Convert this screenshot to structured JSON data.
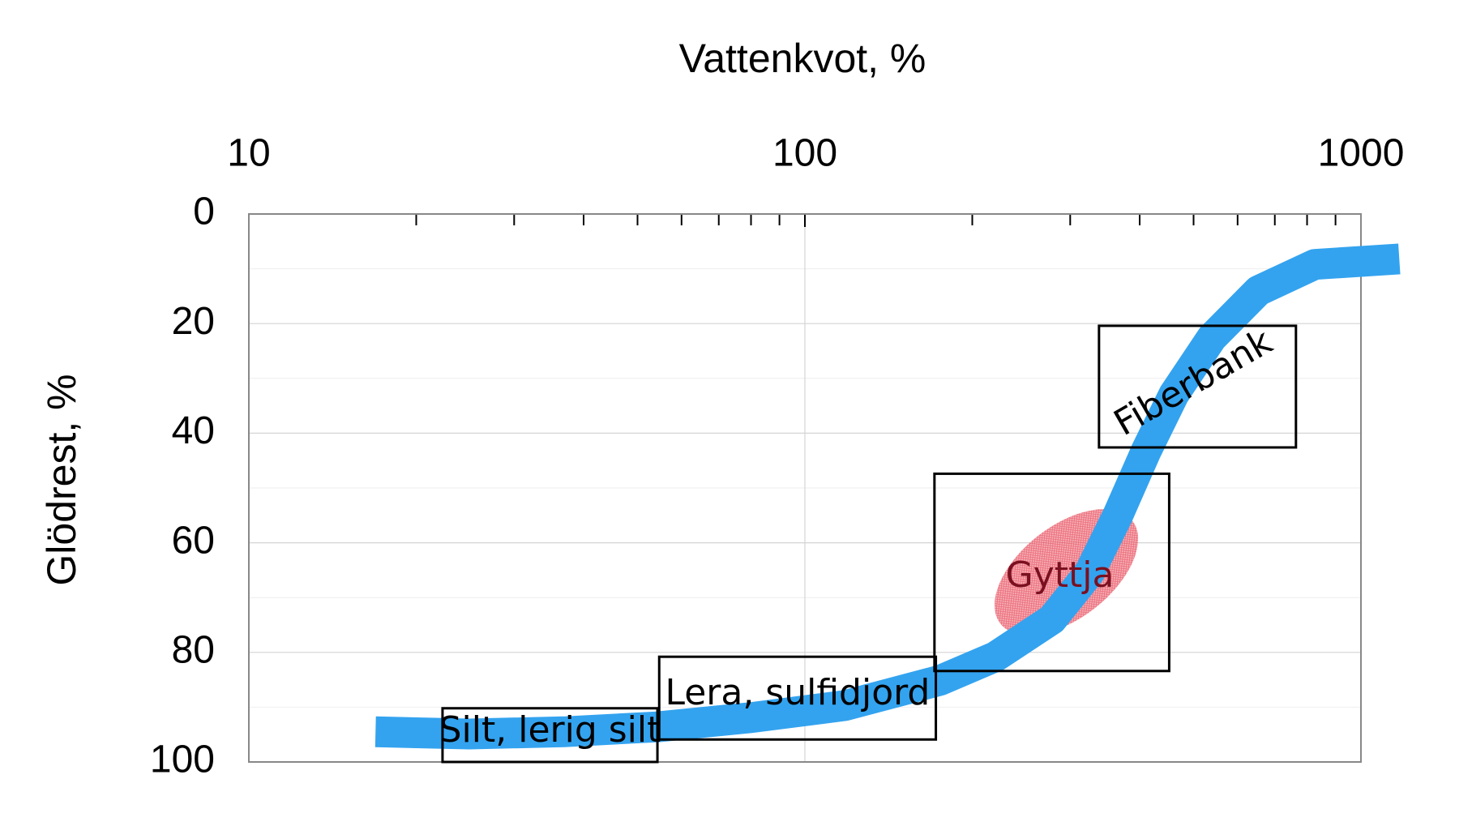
{
  "chart_data": {
    "type": "line",
    "xlabel": "Vattenkvot, %",
    "ylabel": "Glödrest, %",
    "xscale": "log",
    "xlim": [
      10,
      1000
    ],
    "xticks": [
      10,
      100,
      1000
    ],
    "ylim": [
      0,
      100
    ],
    "yticks": [
      0,
      20,
      40,
      60,
      80,
      100
    ],
    "y_inverted": true,
    "grid": true,
    "series": [
      {
        "color": "#33a3ef",
        "x": [
          16.9,
          24.9,
          36.8,
          54.3,
          80.2,
          118,
          175,
          220,
          278,
          325,
          365,
          411,
          461,
          539,
          654,
          826,
          1172
        ],
        "values": [
          94.5,
          94.9,
          94.5,
          93.6,
          91.9,
          89.7,
          85.1,
          80.8,
          74.0,
          65.4,
          55.1,
          43.2,
          32.9,
          22.6,
          14.0,
          9.2,
          8.2
        ]
      }
    ],
    "regions": [
      {
        "label": "Silt, lerig silt",
        "xlim": [
          22.3,
          54.3
        ],
        "ylim": [
          90.2,
          100
        ]
      },
      {
        "label": "Lera, sulfidjord",
        "xlim": [
          54.7,
          172
        ],
        "ylim": [
          80.8,
          95.9
        ]
      },
      {
        "xlim": [
          171,
          452
        ],
        "ylim": [
          47.4,
          83.4
        ]
      },
      {
        "label": "Fiberbank",
        "xlim": [
          338,
          764
        ],
        "ylim": [
          20.4,
          42.6
        ],
        "rotate": -30
      }
    ],
    "ellipse": {
      "label": "Gyttja",
      "xlim": [
        219,
        398
      ],
      "ylim": [
        53,
        77.7
      ],
      "color": "#e8505f"
    }
  }
}
